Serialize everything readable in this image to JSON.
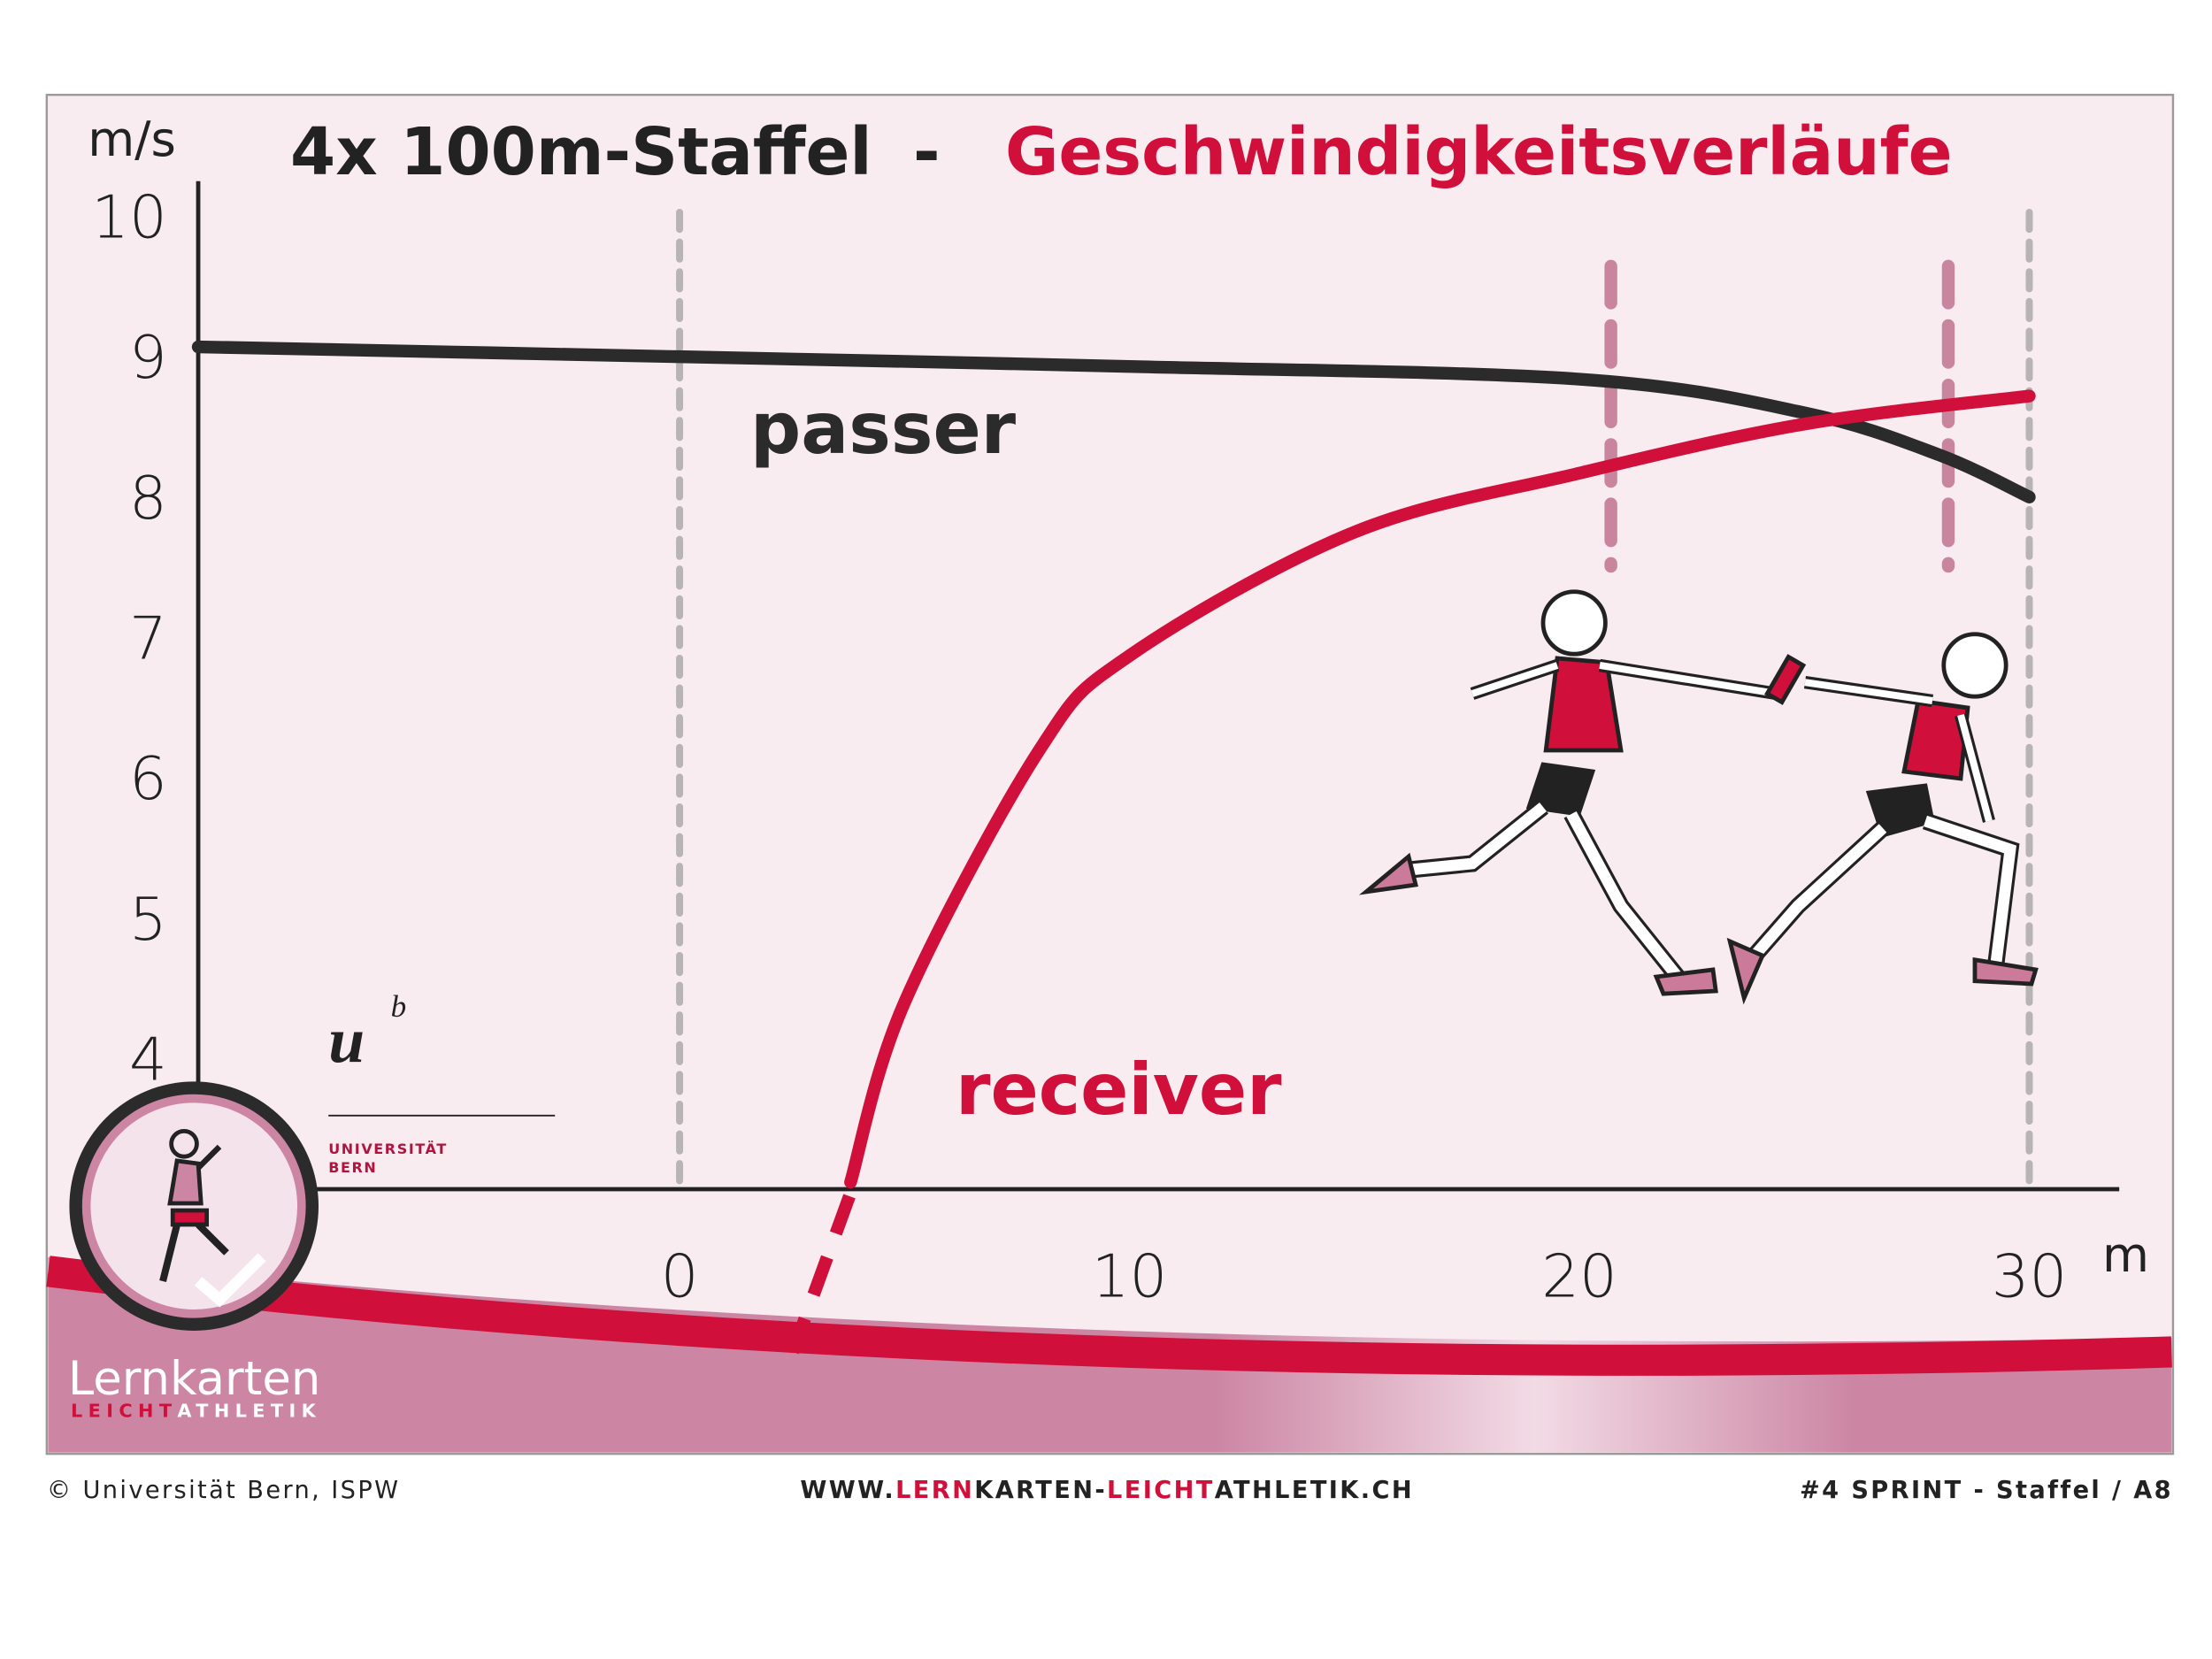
{
  "chart_data": {
    "type": "line",
    "title": "4x 100m-Staffel",
    "title_separator": "-",
    "subtitle": "Geschwindigkeitsverläufe",
    "title_color": "#222222",
    "subtitle_color": "#d0103a",
    "y_label": "m/s",
    "x_label": "m",
    "xlim": [
      -10.7,
      32
    ],
    "ylim": [
      3.07,
      10.25
    ],
    "xticks": [
      0,
      10,
      20,
      30
    ],
    "yticks": [
      4,
      5,
      6,
      7,
      8,
      9,
      10
    ],
    "grid": false,
    "series": [
      {
        "name": "passer",
        "color": "#2b2b2b",
        "x": [
          -10.7,
          0,
          10,
          20,
          25,
          28,
          30
        ],
        "values": [
          9.07,
          9.0,
          8.93,
          8.84,
          8.6,
          8.3,
          8.0
        ]
      },
      {
        "name": "receiver",
        "color": "#d0103a",
        "x": [
          3.8,
          5,
          8,
          10,
          15,
          20,
          25,
          30
        ],
        "values": [
          3.12,
          4.4,
          6.2,
          6.87,
          7.75,
          8.17,
          8.52,
          8.72
        ]
      }
    ],
    "vlines": [
      {
        "x": 0,
        "color": "#b8b4b6"
      },
      {
        "x": 30,
        "color": "#b8b4b6"
      },
      {
        "x": 20.7,
        "color": "#c9859e"
      },
      {
        "x": 28.2,
        "color": "#c9859e"
      }
    ]
  },
  "branding": {
    "university": "UNIVERSITÄT",
    "university_city": "BERN",
    "logo_top": "Lernkarten",
    "logo_bottom_a": "LEICHT",
    "logo_bottom_b": "ATHLETIK"
  },
  "footer": {
    "left": "© Universität Bern, ISPW",
    "url": [
      {
        "text": "WWW.",
        "color": "#222222"
      },
      {
        "text": "LERN",
        "color": "#d0103a"
      },
      {
        "text": "KARTEN-",
        "color": "#222222"
      },
      {
        "text": "LEICHT",
        "color": "#d0103a"
      },
      {
        "text": "ATHLETIK.CH",
        "color": "#222222"
      }
    ],
    "right": "#4 SPRINT - Staffel / A8"
  }
}
